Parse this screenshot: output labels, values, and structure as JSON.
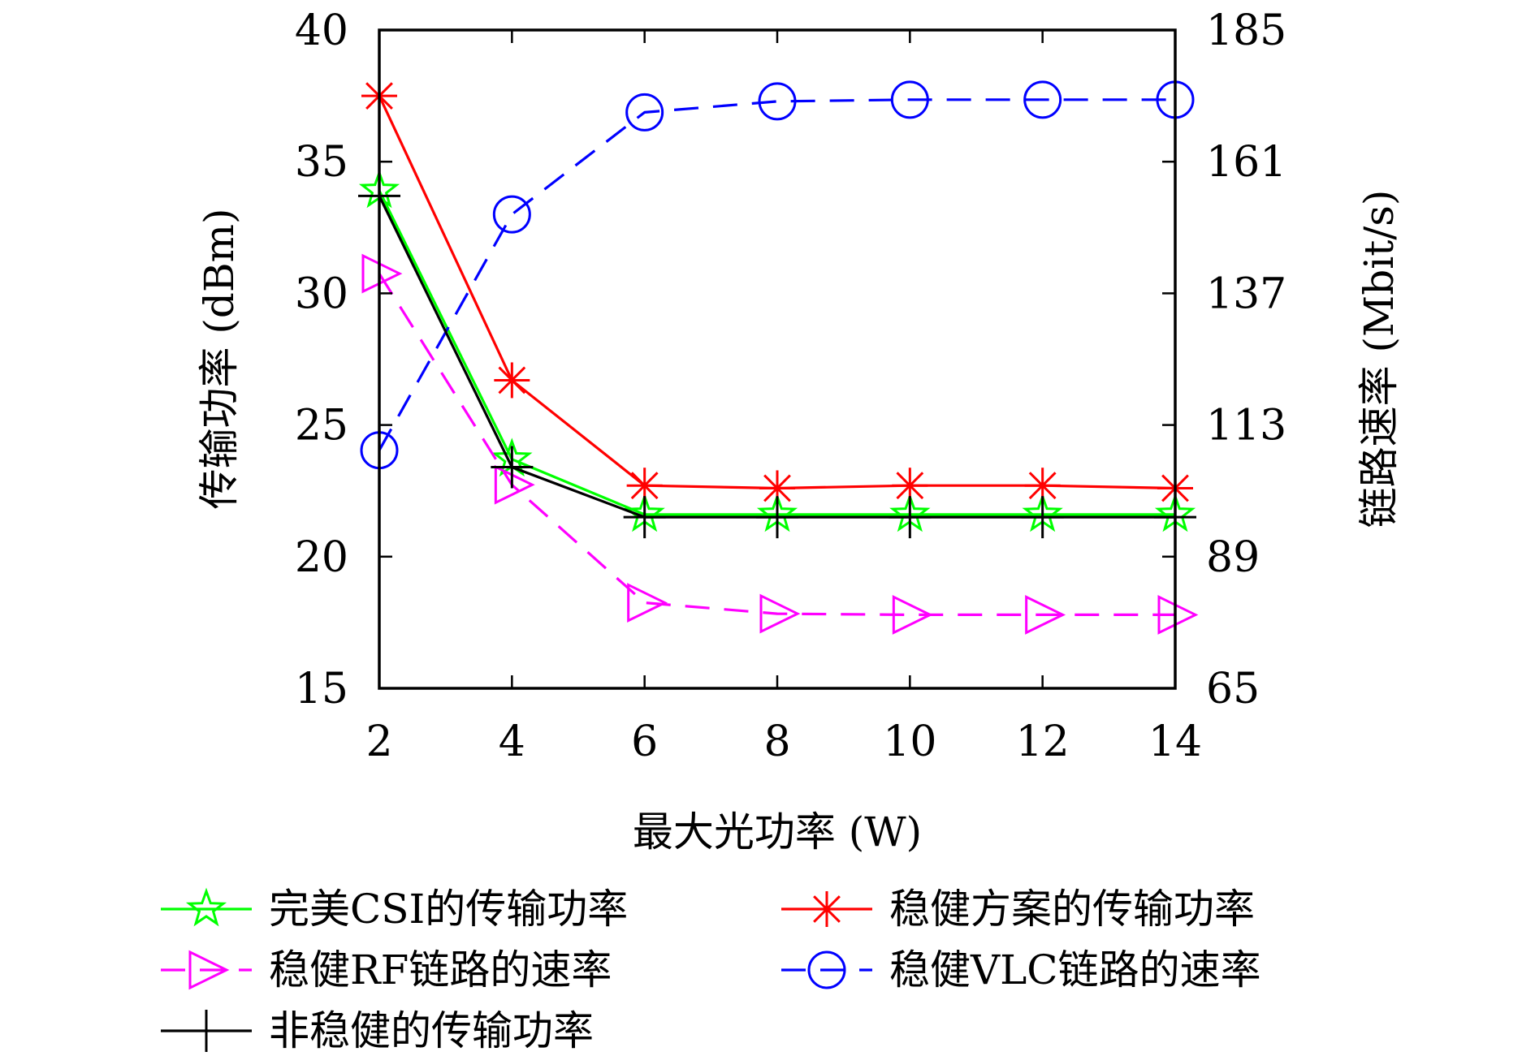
{
  "chart_data": {
    "type": "line",
    "x": [
      2,
      4,
      6,
      8,
      10,
      12,
      14
    ],
    "xlabel": "最大光功率 (W)",
    "ylabel_left": "传输功率 (dBm)",
    "ylabel_right": "链路速率 (Mbit/s)",
    "xlim": [
      2,
      14
    ],
    "ylim_left": [
      15,
      40
    ],
    "ylim_right": [
      65,
      185
    ],
    "x_ticks": [
      2,
      4,
      6,
      8,
      10,
      12,
      14
    ],
    "y_ticks_left": [
      15,
      20,
      25,
      30,
      35,
      40
    ],
    "y_ticks_right": [
      65,
      89,
      113,
      137,
      161,
      185
    ],
    "grid": false,
    "legend_position": "below",
    "series": [
      {
        "name": "完美CSI的传输功率",
        "axis": "left",
        "color": "#00ff00",
        "marker": "star",
        "dash": "solid",
        "values": [
          33.9,
          23.7,
          21.6,
          21.6,
          21.6,
          21.6,
          21.6
        ]
      },
      {
        "name": "稳健方案的传输功率",
        "axis": "left",
        "color": "#ff0000",
        "marker": "asterisk",
        "dash": "solid",
        "values": [
          37.5,
          26.7,
          22.7,
          22.6,
          22.7,
          22.7,
          22.6
        ]
      },
      {
        "name": "稳健RF链路的速率",
        "axis": "right",
        "color": "#ff00ff",
        "marker": "triangle-right",
        "dash": "dashed",
        "values": [
          140.6,
          102.1,
          80.6,
          78.6,
          78.4,
          78.4,
          78.4
        ]
      },
      {
        "name": "稳健VLC链路的速率",
        "axis": "right",
        "color": "#0000ff",
        "marker": "circle",
        "dash": "dashed",
        "values": [
          108.4,
          151.4,
          170.0,
          172.0,
          172.3,
          172.3,
          172.3
        ]
      },
      {
        "name": "非稳健的传输功率",
        "axis": "left",
        "color": "#000000",
        "marker": "plus",
        "dash": "solid",
        "values": [
          33.7,
          23.4,
          21.5,
          21.5,
          21.5,
          21.5,
          21.5
        ]
      }
    ]
  }
}
